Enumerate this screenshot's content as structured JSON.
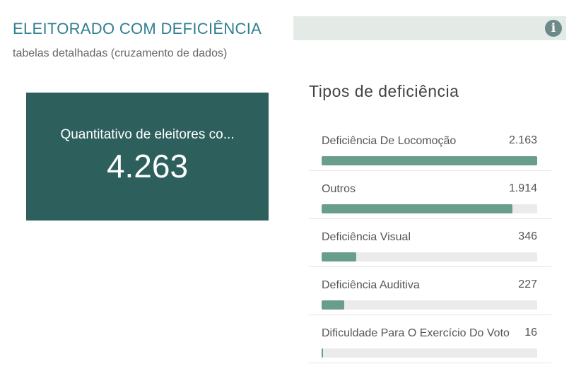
{
  "header": {
    "title": "ELEITORADO COM DEFICIÊNCIA",
    "subtitle": "tabelas detalhadas (cruzamento de dados)",
    "info_icon": "info-icon",
    "info_glyph": "i"
  },
  "card": {
    "label": "Quantitativo de eleitores co...",
    "value": "4.263",
    "color": "#2d5f5c"
  },
  "types": {
    "title": "Tipos de deficiência",
    "bar_color": "#6a9e8c",
    "items": [
      {
        "label": "Deficiência De Locomoção",
        "value": "2.163",
        "number": 2163
      },
      {
        "label": "Outros",
        "value": "1.914",
        "number": 1914
      },
      {
        "label": "Deficiência Visual",
        "value": "346",
        "number": 346
      },
      {
        "label": "Deficiência Auditiva",
        "value": "227",
        "number": 227
      },
      {
        "label": "Dificuldade Para O Exercício Do Voto",
        "value": "16",
        "number": 16
      }
    ]
  }
}
